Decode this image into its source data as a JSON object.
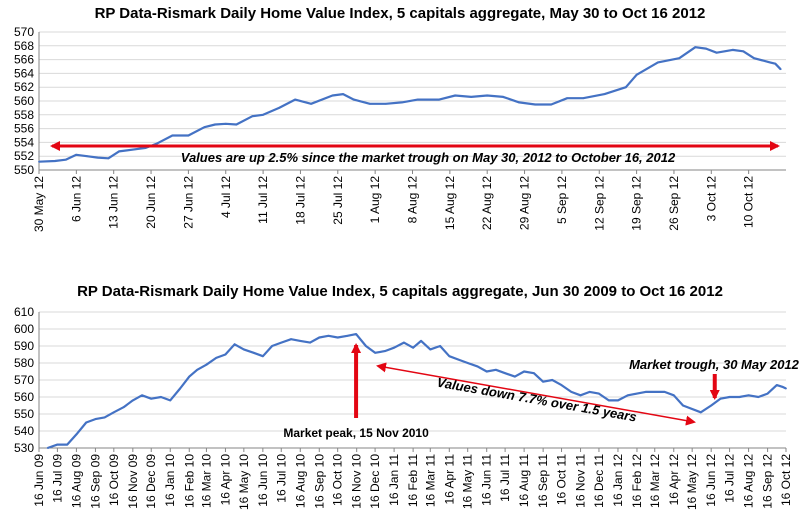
{
  "colors": {
    "line": "#4472C4",
    "annotation": "#E30613",
    "grid": "#D9D9D9"
  },
  "chart_data": [
    {
      "type": "line",
      "title": "RP Data-Rismark Daily Home Value Index, 5 capitals aggregate, May 30 to Oct 16 2012",
      "xlabel": "",
      "ylabel": "",
      "ylim": [
        550,
        570
      ],
      "y_ticks": [
        "550",
        "552",
        "554",
        "556",
        "558",
        "560",
        "562",
        "564",
        "566",
        "568",
        "570"
      ],
      "x_ticks": [
        "30 May 12",
        "6 Jun 12",
        "13 Jun 12",
        "20 Jun 12",
        "27 Jun 12",
        "4 Jul 12",
        "11 Jul 12",
        "18 Jul 12",
        "25 Jul 12",
        "1 Aug 12",
        "8 Aug 12",
        "15 Aug 12",
        "22 Aug 12",
        "29 Aug 12",
        "5 Sep 12",
        "12 Sep 12",
        "19 Sep 12",
        "26 Sep 12",
        "3 Oct 12",
        "10 Oct 12"
      ],
      "grid": true,
      "series": [
        {
          "values": [
            {
              "x": "30 May 12",
              "y": 551.2
            },
            {
              "x": "2 Jun 12",
              "y": 551.3
            },
            {
              "x": "4 Jun 12",
              "y": 551.5
            },
            {
              "x": "6 Jun 12",
              "y": 552.2
            },
            {
              "x": "8 Jun 12",
              "y": 552.0
            },
            {
              "x": "10 Jun 12",
              "y": 551.8
            },
            {
              "x": "12 Jun 12",
              "y": 551.7
            },
            {
              "x": "14 Jun 12",
              "y": 552.7
            },
            {
              "x": "17 Jun 12",
              "y": 553.0
            },
            {
              "x": "19 Jun 12",
              "y": 553.2
            },
            {
              "x": "21 Jun 12",
              "y": 553.8
            },
            {
              "x": "24 Jun 12",
              "y": 555.0
            },
            {
              "x": "27 Jun 12",
              "y": 555.0
            },
            {
              "x": "30 Jun 12",
              "y": 556.2
            },
            {
              "x": "2 Jul 12",
              "y": 556.6
            },
            {
              "x": "4 Jul 12",
              "y": 556.7
            },
            {
              "x": "6 Jul 12",
              "y": 556.6
            },
            {
              "x": "9 Jul 12",
              "y": 557.8
            },
            {
              "x": "11 Jul 12",
              "y": 558.0
            },
            {
              "x": "14 Jul 12",
              "y": 559.0
            },
            {
              "x": "17 Jul 12",
              "y": 560.2
            },
            {
              "x": "20 Jul 12",
              "y": 559.6
            },
            {
              "x": "24 Jul 12",
              "y": 560.8
            },
            {
              "x": "26 Jul 12",
              "y": 561.0
            },
            {
              "x": "28 Jul 12",
              "y": 560.2
            },
            {
              "x": "31 Jul 12",
              "y": 559.6
            },
            {
              "x": "3 Aug 12",
              "y": 559.6
            },
            {
              "x": "6 Aug 12",
              "y": 559.8
            },
            {
              "x": "9 Aug 12",
              "y": 560.2
            },
            {
              "x": "13 Aug 12",
              "y": 560.2
            },
            {
              "x": "16 Aug 12",
              "y": 560.8
            },
            {
              "x": "19 Aug 12",
              "y": 560.6
            },
            {
              "x": "22 Aug 12",
              "y": 560.8
            },
            {
              "x": "25 Aug 12",
              "y": 560.6
            },
            {
              "x": "28 Aug 12",
              "y": 559.8
            },
            {
              "x": "31 Aug 12",
              "y": 559.5
            },
            {
              "x": "3 Sep 12",
              "y": 559.5
            },
            {
              "x": "6 Sep 12",
              "y": 560.4
            },
            {
              "x": "9 Sep 12",
              "y": 560.4
            },
            {
              "x": "13 Sep 12",
              "y": 561.0
            },
            {
              "x": "17 Sep 12",
              "y": 562.0
            },
            {
              "x": "19 Sep 12",
              "y": 563.8
            },
            {
              "x": "23 Sep 12",
              "y": 565.6
            },
            {
              "x": "27 Sep 12",
              "y": 566.2
            },
            {
              "x": "30 Sep 12",
              "y": 567.8
            },
            {
              "x": "2 Oct 12",
              "y": 567.6
            },
            {
              "x": "4 Oct 12",
              "y": 567.0
            },
            {
              "x": "7 Oct 12",
              "y": 567.4
            },
            {
              "x": "9 Oct 12",
              "y": 567.2
            },
            {
              "x": "11 Oct 12",
              "y": 566.2
            },
            {
              "x": "14 Oct 12",
              "y": 565.6
            },
            {
              "x": "15 Oct 12",
              "y": 565.4
            },
            {
              "x": "16 Oct 12",
              "y": 564.6
            }
          ]
        }
      ],
      "annotations": [
        {
          "text": "Values are up 2.5% since the market trough on May 30, 2012 to October 16, 2012"
        }
      ]
    },
    {
      "type": "line",
      "title": "RP Data-Rismark Daily Home Value Index, 5 capitals aggregate, Jun 30 2009 to Oct 16 2012",
      "xlabel": "",
      "ylabel": "",
      "ylim": [
        530,
        610
      ],
      "y_ticks": [
        "530",
        "540",
        "550",
        "560",
        "570",
        "580",
        "590",
        "600",
        "610"
      ],
      "x_ticks": [
        "16 Jun 09",
        "16 Jul 09",
        "16 Aug 09",
        "16 Sep 09",
        "16 Oct 09",
        "16 Nov 09",
        "16 Dec 09",
        "16 Jan 10",
        "16 Feb 10",
        "16 Mar 10",
        "16 Apr 10",
        "16 May 10",
        "16 Jun 10",
        "16 Jul 10",
        "16 Aug 10",
        "16 Sep 10",
        "16 Oct 10",
        "16 Nov 10",
        "16 Dec 10",
        "16 Jan 11",
        "16 Feb 11",
        "16 Mar 11",
        "16 Apr 11",
        "16 May 11",
        "16 Jun 11",
        "16 Jul 11",
        "16 Aug 11",
        "16 Sep 11",
        "16 Oct 11",
        "16 Nov 11",
        "16 Dec 11",
        "16 Jan 12",
        "16 Feb 12",
        "16 Mar 12",
        "16 Apr 12",
        "16 May 12",
        "16 Jun 12",
        "16 Jul 12",
        "16 Aug 12",
        "16 Sep 12",
        "16 Oct 12"
      ],
      "grid": true,
      "series": [
        {
          "values": [
            {
              "x": "30 Jun 09",
              "y": 530
            },
            {
              "x": "16 Jul 09",
              "y": 532
            },
            {
              "x": "1 Aug 09",
              "y": 532
            },
            {
              "x": "16 Aug 09",
              "y": 538
            },
            {
              "x": "1 Sep 09",
              "y": 545
            },
            {
              "x": "16 Sep 09",
              "y": 547
            },
            {
              "x": "1 Oct 09",
              "y": 548
            },
            {
              "x": "16 Oct 09",
              "y": 551
            },
            {
              "x": "1 Nov 09",
              "y": 554
            },
            {
              "x": "16 Nov 09",
              "y": 558
            },
            {
              "x": "1 Dec 09",
              "y": 561
            },
            {
              "x": "16 Dec 09",
              "y": 559
            },
            {
              "x": "1 Jan 10",
              "y": 560
            },
            {
              "x": "16 Jan 10",
              "y": 558
            },
            {
              "x": "1 Feb 10",
              "y": 565
            },
            {
              "x": "16 Feb 10",
              "y": 572
            },
            {
              "x": "1 Mar 10",
              "y": 576
            },
            {
              "x": "16 Mar 10",
              "y": 579
            },
            {
              "x": "1 Apr 10",
              "y": 583
            },
            {
              "x": "16 Apr 10",
              "y": 585
            },
            {
              "x": "1 May 10",
              "y": 591
            },
            {
              "x": "16 May 10",
              "y": 588
            },
            {
              "x": "1 Jun 10",
              "y": 586
            },
            {
              "x": "16 Jun 10",
              "y": 584
            },
            {
              "x": "1 Jul 10",
              "y": 590
            },
            {
              "x": "16 Jul 10",
              "y": 592
            },
            {
              "x": "1 Aug 10",
              "y": 594
            },
            {
              "x": "16 Aug 10",
              "y": 593
            },
            {
              "x": "1 Sep 10",
              "y": 592
            },
            {
              "x": "16 Sep 10",
              "y": 595
            },
            {
              "x": "1 Oct 10",
              "y": 596
            },
            {
              "x": "16 Oct 10",
              "y": 595
            },
            {
              "x": "1 Nov 10",
              "y": 596
            },
            {
              "x": "15 Nov 10",
              "y": 597
            },
            {
              "x": "1 Dec 10",
              "y": 590
            },
            {
              "x": "16 Dec 10",
              "y": 586
            },
            {
              "x": "1 Jan 11",
              "y": 587
            },
            {
              "x": "16 Jan 11",
              "y": 589
            },
            {
              "x": "1 Feb 11",
              "y": 592
            },
            {
              "x": "16 Feb 11",
              "y": 589
            },
            {
              "x": "1 Mar 11",
              "y": 593
            },
            {
              "x": "16 Mar 11",
              "y": 588
            },
            {
              "x": "1 Apr 11",
              "y": 590
            },
            {
              "x": "16 Apr 11",
              "y": 584
            },
            {
              "x": "1 May 11",
              "y": 582
            },
            {
              "x": "16 May 11",
              "y": 580
            },
            {
              "x": "1 Jun 11",
              "y": 578
            },
            {
              "x": "16 Jun 11",
              "y": 575
            },
            {
              "x": "1 Jul 11",
              "y": 576
            },
            {
              "x": "16 Jul 11",
              "y": 574
            },
            {
              "x": "1 Aug 11",
              "y": 572
            },
            {
              "x": "16 Aug 11",
              "y": 575
            },
            {
              "x": "1 Sep 11",
              "y": 574
            },
            {
              "x": "16 Sep 11",
              "y": 569
            },
            {
              "x": "1 Oct 11",
              "y": 570
            },
            {
              "x": "16 Oct 11",
              "y": 567
            },
            {
              "x": "1 Nov 11",
              "y": 563
            },
            {
              "x": "16 Nov 11",
              "y": 561
            },
            {
              "x": "1 Dec 11",
              "y": 563
            },
            {
              "x": "16 Dec 11",
              "y": 562
            },
            {
              "x": "1 Jan 12",
              "y": 558
            },
            {
              "x": "16 Jan 12",
              "y": 558
            },
            {
              "x": "1 Feb 12",
              "y": 561
            },
            {
              "x": "16 Feb 12",
              "y": 562
            },
            {
              "x": "1 Mar 12",
              "y": 563
            },
            {
              "x": "16 Mar 12",
              "y": 563
            },
            {
              "x": "1 Apr 12",
              "y": 563
            },
            {
              "x": "16 Apr 12",
              "y": 561
            },
            {
              "x": "1 May 12",
              "y": 555
            },
            {
              "x": "30 May 12",
              "y": 551
            },
            {
              "x": "16 Jun 12",
              "y": 555
            },
            {
              "x": "1 Jul 12",
              "y": 559
            },
            {
              "x": "16 Jul 12",
              "y": 560
            },
            {
              "x": "1 Aug 12",
              "y": 560
            },
            {
              "x": "16 Aug 12",
              "y": 561
            },
            {
              "x": "1 Sep 12",
              "y": 560
            },
            {
              "x": "16 Sep 12",
              "y": 562
            },
            {
              "x": "1 Oct 12",
              "y": 567
            },
            {
              "x": "10 Oct 12",
              "y": 566
            },
            {
              "x": "16 Oct 12",
              "y": 565
            }
          ]
        }
      ],
      "annotations": [
        {
          "text": "Market trough, 30 May 2012"
        },
        {
          "text": "Values down 7.7% over 1.5 years"
        },
        {
          "text": "Market peak, 15 Nov 2010"
        }
      ]
    }
  ]
}
